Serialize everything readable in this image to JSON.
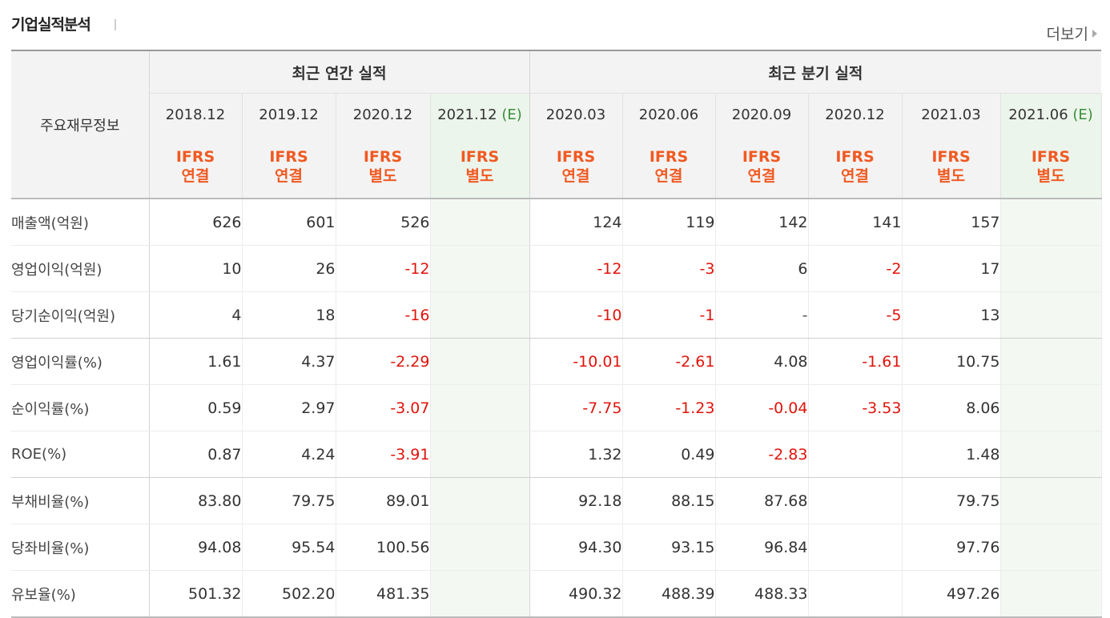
{
  "page": {
    "title": "기업실적분석",
    "more_label": "더보기"
  },
  "table": {
    "corner_label": "주요재무정보",
    "groups": {
      "annual": "최근 연간 실적",
      "quarterly": "최근 분기 실적"
    },
    "periods": [
      {
        "label": "2018.12",
        "est": ""
      },
      {
        "label": "2019.12",
        "est": ""
      },
      {
        "label": "2020.12",
        "est": ""
      },
      {
        "label": "2021.12",
        "est": "(E)"
      },
      {
        "label": "2020.03",
        "est": ""
      },
      {
        "label": "2020.06",
        "est": ""
      },
      {
        "label": "2020.09",
        "est": ""
      },
      {
        "label": "2020.12",
        "est": ""
      },
      {
        "label": "2021.03",
        "est": ""
      },
      {
        "label": "2021.06",
        "est": "(E)"
      }
    ],
    "ifrs": [
      {
        "top": "IFRS",
        "bottom": "연결"
      },
      {
        "top": "IFRS",
        "bottom": "연결"
      },
      {
        "top": "IFRS",
        "bottom": "별도"
      },
      {
        "top": "IFRS",
        "bottom": "별도"
      },
      {
        "top": "IFRS",
        "bottom": "연결"
      },
      {
        "top": "IFRS",
        "bottom": "연결"
      },
      {
        "top": "IFRS",
        "bottom": "연결"
      },
      {
        "top": "IFRS",
        "bottom": "연결"
      },
      {
        "top": "IFRS",
        "bottom": "별도"
      },
      {
        "top": "IFRS",
        "bottom": "별도"
      }
    ],
    "rows": [
      {
        "label": "매출액(억원)",
        "values": [
          "626",
          "601",
          "526",
          "",
          "124",
          "119",
          "142",
          "141",
          "157",
          ""
        ]
      },
      {
        "label": "영업이익(억원)",
        "values": [
          "10",
          "26",
          "-12",
          "",
          "-12",
          "-3",
          "6",
          "-2",
          "17",
          ""
        ]
      },
      {
        "label": "당기순이익(억원)",
        "values": [
          "4",
          "18",
          "-16",
          "",
          "-10",
          "-1",
          "-",
          "-5",
          "13",
          ""
        ]
      },
      {
        "label": "영업이익률(%)",
        "values": [
          "1.61",
          "4.37",
          "-2.29",
          "",
          "-10.01",
          "-2.61",
          "4.08",
          "-1.61",
          "10.75",
          ""
        ]
      },
      {
        "label": "순이익률(%)",
        "values": [
          "0.59",
          "2.97",
          "-3.07",
          "",
          "-7.75",
          "-1.23",
          "-0.04",
          "-3.53",
          "8.06",
          ""
        ]
      },
      {
        "label": "ROE(%)",
        "values": [
          "0.87",
          "4.24",
          "-3.91",
          "",
          "1.32",
          "0.49",
          "-2.83",
          "",
          "1.48",
          ""
        ]
      },
      {
        "label": "부채비율(%)",
        "values": [
          "83.80",
          "79.75",
          "89.01",
          "",
          "92.18",
          "88.15",
          "87.68",
          "",
          "79.75",
          ""
        ]
      },
      {
        "label": "당좌비율(%)",
        "values": [
          "94.08",
          "95.54",
          "100.56",
          "",
          "94.30",
          "93.15",
          "96.84",
          "",
          "97.76",
          ""
        ]
      },
      {
        "label": "유보율(%)",
        "values": [
          "501.32",
          "502.20",
          "481.35",
          "",
          "490.32",
          "488.39",
          "488.33",
          "",
          "497.26",
          ""
        ]
      }
    ],
    "colors": {
      "negative": "#e0140b",
      "ifrs": "#f05a22",
      "estimate": "#3a8e3a"
    }
  }
}
